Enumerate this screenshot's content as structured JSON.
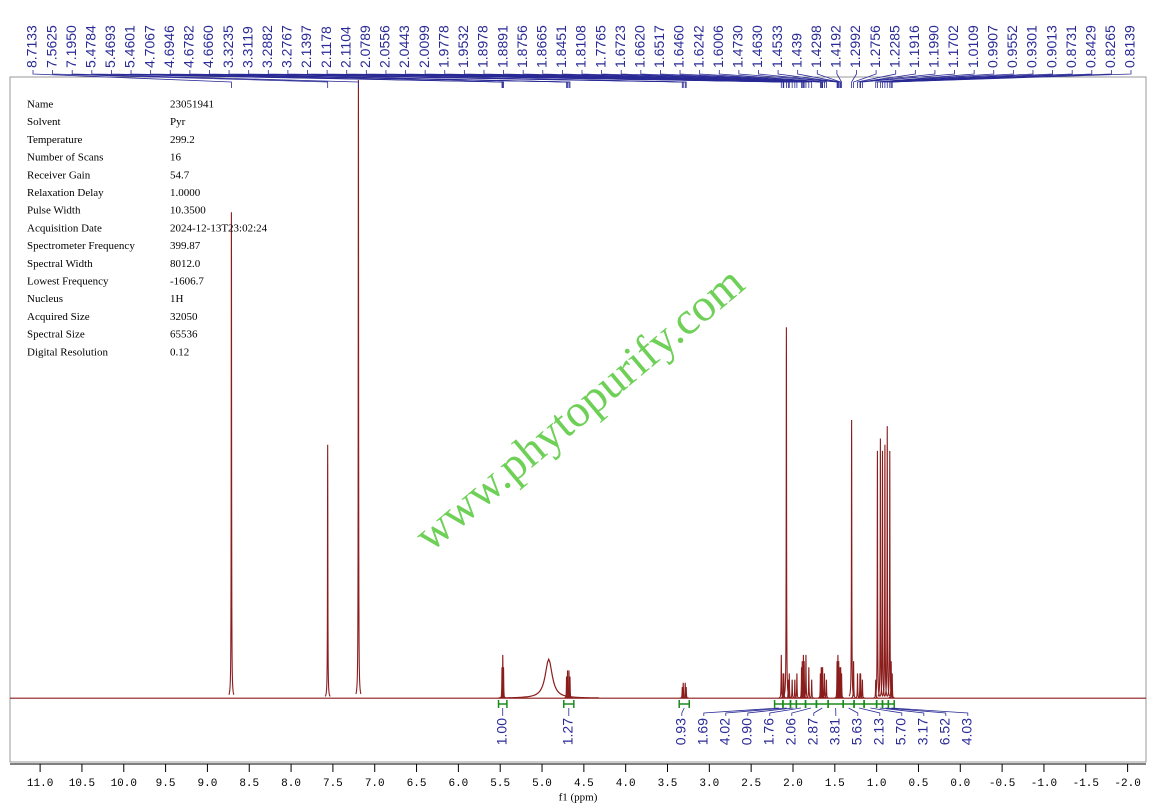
{
  "chart_data": {
    "type": "line",
    "x_label": "f1 (ppm)",
    "xlim": [
      11.36,
      -2.22
    ],
    "ylim": [
      -10,
      100
    ],
    "xticks": [
      {
        "value": 11,
        "label": "11.0"
      },
      10.5,
      {
        "value": 10,
        "label": "10.0"
      },
      9.5,
      {
        "value": 9,
        "label": "9.0"
      },
      8.5,
      {
        "value": 8,
        "label": "8.0"
      },
      7.5,
      {
        "value": 7,
        "label": "7.0"
      },
      6.5,
      {
        "value": 6,
        "label": "6.0"
      },
      5.5,
      {
        "value": 5,
        "label": "5.0"
      },
      4.5,
      {
        "value": 4,
        "label": "4.0"
      },
      3.5,
      {
        "value": 3,
        "label": "3.0"
      },
      2.5,
      {
        "value": 2,
        "label": "2.0"
      },
      1.5,
      {
        "value": 1,
        "label": "1.0"
      },
      0.5,
      {
        "value": 0,
        "label": "0.0"
      },
      -0.5,
      {
        "value": -1,
        "label": "-1.0"
      },
      -1.5,
      {
        "value": -2,
        "label": "-2.0"
      }
    ],
    "color": "#8b1c1c",
    "x": [
      8.7133,
      7.5625,
      {
        "value": 7.195,
        "label": "7.1950"
      },
      5.4784,
      5.4693,
      5.4601,
      4.7067,
      4.6946,
      4.6782,
      {
        "value": 4.666,
        "label": "4.6660"
      },
      3.3235,
      3.3119,
      3.2882,
      3.2767,
      2.1397,
      2.1178,
      2.1104,
      2.0789,
      2.0556,
      2.0443,
      2.0099,
      1.9778,
      1.9532,
      1.8978,
      1.8891,
      1.8756,
      1.8665,
      1.8451,
      1.8108,
      1.7765,
      1.6723,
      {
        "value": 1.662,
        "label": "1.6620"
      },
      1.6517,
      {
        "value": 1.646,
        "label": "1.6460"
      },
      1.6242,
      1.6006,
      {
        "value": 1.473,
        "label": "1.4730"
      },
      {
        "value": 1.463,
        "label": "1.4630"
      },
      1.4533,
      1.439,
      1.4298,
      1.4192,
      1.2992,
      1.2756,
      1.2285,
      1.1916,
      {
        "value": 1.199,
        "label": "1.1990"
      },
      1.1702,
      1.0109,
      0.9907,
      0.9552,
      0.9301,
      0.9013,
      0.8731,
      0.8429,
      0.8265,
      0.8139
    ],
    "values": [
      78.6,
      41,
      100,
      5,
      7,
      5,
      3.5,
      4.5,
      4.5,
      3.5,
      1.8,
      2.5,
      2.5,
      1.8,
      7,
      4,
      4,
      60,
      3,
      4,
      3,
      3,
      4,
      5,
      6,
      7,
      6,
      7,
      5,
      3,
      4,
      5,
      5,
      5,
      4,
      3,
      6,
      7,
      6,
      5,
      5,
      4,
      45,
      6,
      4,
      4,
      4,
      3,
      3,
      40,
      42,
      40,
      41,
      44,
      40,
      6,
      4
    ],
    "broad_peaks": {
      "x": [
        4.92
      ],
      "values": [
        6.3
      ]
    },
    "integrals": {
      "from": [
        5.52,
        4.74,
        3.36,
        2.22,
        2.12,
        2.03,
        1.96,
        1.85,
        1.72,
        1.58,
        1.4,
        1.27,
        1.15,
        1.0,
        0.93,
        0.86
      ],
      "to": [
        5.42,
        4.62,
        3.24,
        2.12,
        2.03,
        1.96,
        1.85,
        1.72,
        1.58,
        1.4,
        1.27,
        1.15,
        1.0,
        0.93,
        0.86,
        0.79
      ],
      "values": [
        1,
        1.27,
        0.93,
        1.69,
        4.02,
        0.9,
        1.76,
        2.06,
        2.87,
        3.81,
        5.63,
        2.13,
        5.7,
        3.17,
        6.52,
        4.03
      ],
      "value_labels": [
        "1.00",
        "1.27",
        "0.93",
        "1.69",
        "4.02",
        "0.90",
        "1.76",
        "2.06",
        "2.87",
        "3.81",
        "5.63",
        "2.13",
        "5.70",
        "3.17",
        "6.52",
        "4.03"
      ]
    }
  },
  "parameters": [
    [
      "Name",
      "23051941"
    ],
    [
      "Solvent",
      "Pyr"
    ],
    [
      "Temperature",
      "299.2"
    ],
    [
      "Number of Scans",
      "16"
    ],
    [
      "Receiver Gain",
      "54.7"
    ],
    [
      "Relaxation Delay",
      "1.0000"
    ],
    [
      "Pulse Width",
      "10.3500"
    ],
    [
      "Acquisition Date",
      "2024-12-13T23:02:24"
    ],
    [
      "Spectrometer Frequency",
      "399.87"
    ],
    [
      "Spectral Width",
      "8012.0"
    ],
    [
      "Lowest Frequency",
      "-1606.7"
    ],
    [
      "Nucleus",
      "1H"
    ],
    [
      "Acquired Size",
      "32050"
    ],
    [
      "Spectral Size",
      "65536"
    ],
    [
      "Digital Resolution",
      "0.12"
    ]
  ],
  "watermark": "www.phytopurify.com"
}
